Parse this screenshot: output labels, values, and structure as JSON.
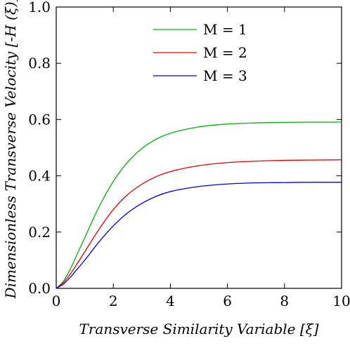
{
  "chart_data": {
    "type": "line",
    "xlabel": "Transverse Similarity Variable [ξ]",
    "ylabel": "Dimensionless Transverse Velocity [-H (ξ)]",
    "xlim": [
      0,
      10
    ],
    "ylim": [
      0,
      1.0
    ],
    "x_ticks": [
      "0",
      "2",
      "4",
      "6",
      "8",
      "10"
    ],
    "y_ticks": [
      "0.0",
      "0.2",
      "0.4",
      "0.6",
      "0.8",
      "1.0"
    ],
    "grid": false,
    "legend_position": "top-right",
    "x": [
      0,
      0.25,
      0.5,
      0.75,
      1,
      1.5,
      2,
      2.5,
      3,
      3.5,
      4,
      5,
      6,
      7,
      8,
      9,
      10
    ],
    "series": [
      {
        "name": "M = 1",
        "color": "#00b400",
        "values": [
          0.0,
          0.025,
          0.07,
          0.125,
          0.18,
          0.29,
          0.38,
          0.448,
          0.497,
          0.53,
          0.551,
          0.574,
          0.584,
          0.588,
          0.59,
          0.591,
          0.591
        ]
      },
      {
        "name": "M = 2",
        "color": "#e00000",
        "values": [
          0.0,
          0.02,
          0.052,
          0.09,
          0.13,
          0.21,
          0.28,
          0.333,
          0.37,
          0.397,
          0.415,
          0.436,
          0.447,
          0.452,
          0.455,
          0.456,
          0.457
        ]
      },
      {
        "name": "M = 3",
        "color": "#0000e0",
        "values": [
          0.0,
          0.015,
          0.04,
          0.07,
          0.1,
          0.165,
          0.222,
          0.268,
          0.302,
          0.327,
          0.344,
          0.362,
          0.371,
          0.375,
          0.376,
          0.377,
          0.377
        ]
      }
    ]
  }
}
